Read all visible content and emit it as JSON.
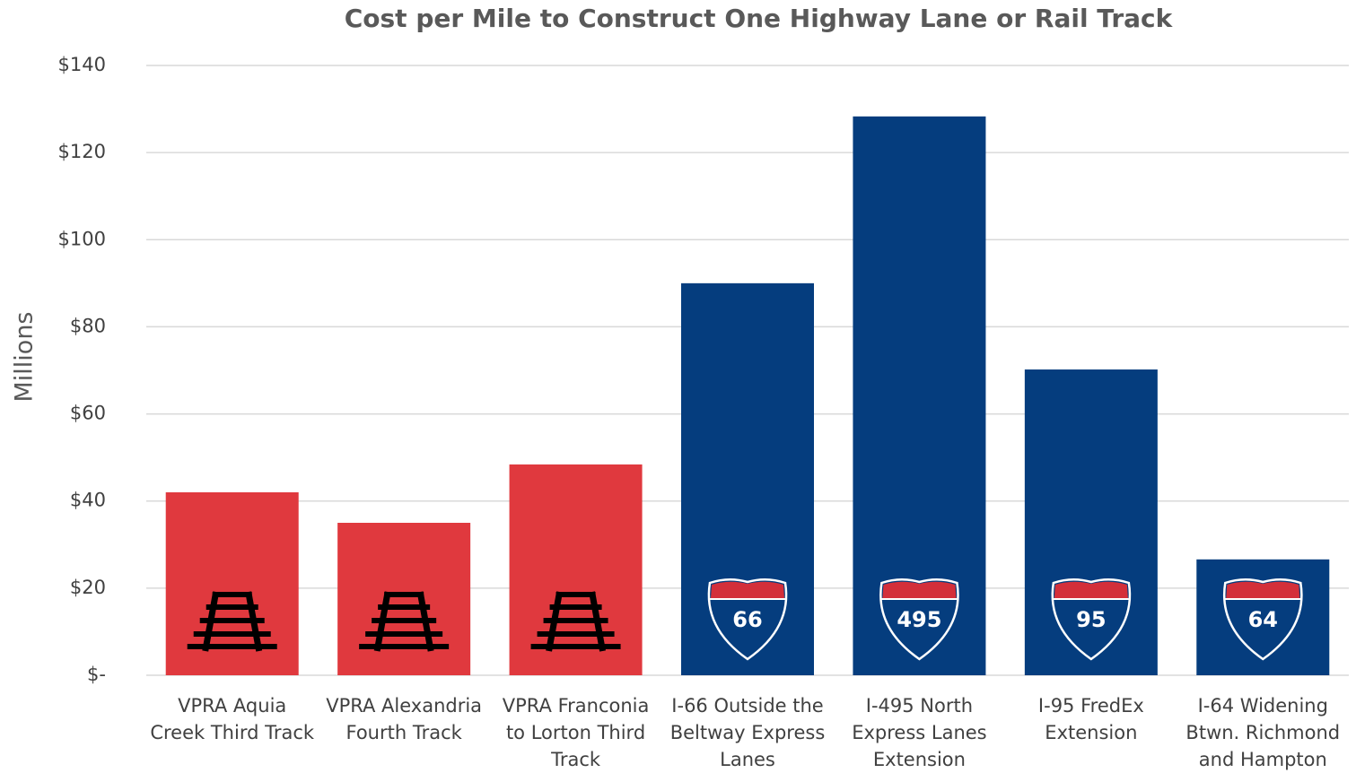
{
  "chart_data": {
    "type": "bar",
    "title": "Cost per Mile to Construct One Highway Lane or Rail Track",
    "y_label": "Millions",
    "categories": [
      "VPRA Aquia Creek Third Track",
      "VPRA Alexandria Fourth Track",
      "VPRA Franconia to Lorton Third Track",
      "I-66 Outside the Beltway Express Lanes",
      "I-495 North Express Lanes Extension",
      "I-95 FredEx Extension",
      "I-64 Widening Btwn. Richmond and Hampton"
    ],
    "values": [
      42,
      35,
      48.4,
      90,
      128.3,
      70.2,
      26.6
    ],
    "colors": [
      "#e0393e",
      "#e0393e",
      "#e0393e",
      "#053d7e",
      "#053d7e",
      "#053d7e",
      "#053d7e"
    ],
    "shield_labels": [
      null,
      null,
      null,
      "66",
      "495",
      "95",
      "64"
    ],
    "ylim": [
      0,
      140
    ],
    "yticks": [
      {
        "value": 0,
        "label": "$-"
      },
      {
        "value": 20,
        "label": "$20"
      },
      {
        "value": 40,
        "label": "$40"
      },
      {
        "value": 60,
        "label": "$60"
      },
      {
        "value": 80,
        "label": "$80"
      },
      {
        "value": 100,
        "label": "$100"
      },
      {
        "value": 120,
        "label": "$120"
      },
      {
        "value": 140,
        "label": "$140"
      }
    ],
    "grid": true
  }
}
